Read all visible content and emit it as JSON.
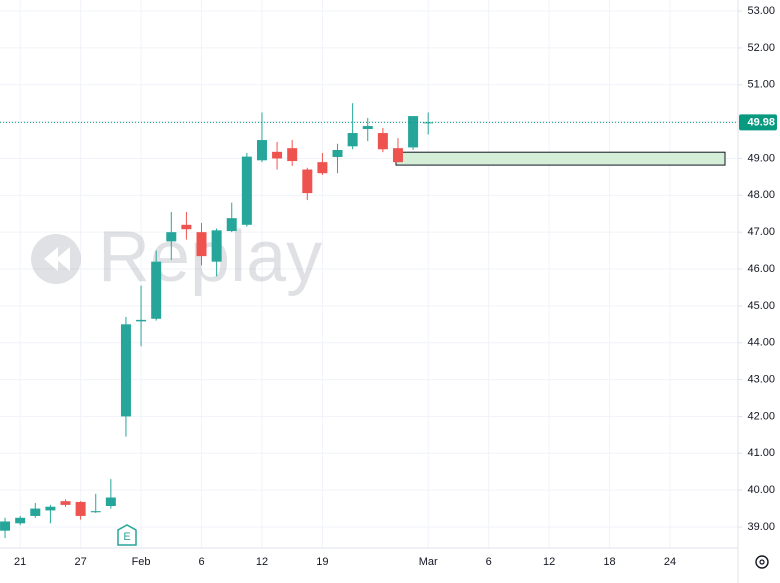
{
  "chart_data": {
    "type": "candlestick",
    "watermark": "Replay",
    "earnings_label": "E",
    "categories": [
      null,
      "21",
      null,
      null,
      null,
      "27",
      null,
      null,
      null,
      "Feb",
      null,
      null,
      null,
      "6",
      null,
      null,
      null,
      "12",
      null,
      null,
      null,
      "19",
      null,
      null,
      null,
      null,
      null,
      null,
      "Mar",
      null,
      null,
      null,
      "6",
      null,
      null,
      null,
      "12",
      null,
      null,
      null,
      "18",
      null,
      null,
      null,
      "24",
      null,
      null,
      null,
      null
    ],
    "open": [
      38.9,
      39.1,
      39.3,
      39.45,
      39.7,
      39.68,
      39.4,
      39.57,
      42.0,
      44.58,
      44.65,
      46.75,
      47.2,
      47.0,
      46.2,
      47.03,
      47.2,
      48.95,
      49.18,
      49.28,
      48.7,
      48.9,
      49.04,
      49.33,
      49.8,
      49.69,
      49.28,
      49.3,
      49.97,
      null,
      null,
      null,
      null,
      null,
      null,
      null,
      null,
      null,
      null,
      null,
      null,
      null,
      null,
      null,
      null,
      null,
      null,
      null,
      null
    ],
    "high": [
      39.25,
      39.3,
      39.65,
      39.6,
      39.75,
      39.7,
      39.9,
      40.3,
      44.7,
      45.55,
      46.5,
      47.55,
      47.55,
      47.25,
      47.1,
      47.8,
      49.15,
      50.25,
      49.45,
      49.5,
      48.75,
      49.15,
      49.4,
      50.5,
      50.1,
      49.83,
      49.55,
      50.15,
      50.25,
      null,
      null,
      null,
      null,
      null,
      null,
      null,
      null,
      null,
      null,
      null,
      null,
      null,
      null,
      null,
      null,
      null,
      null,
      null,
      null
    ],
    "low": [
      38.7,
      39.05,
      39.25,
      39.1,
      39.55,
      39.2,
      39.38,
      39.5,
      41.45,
      43.9,
      44.6,
      46.25,
      46.8,
      46.1,
      45.8,
      47.0,
      47.15,
      48.9,
      48.7,
      48.8,
      47.87,
      48.55,
      48.6,
      49.25,
      49.47,
      49.17,
      48.9,
      49.23,
      49.65,
      null,
      null,
      null,
      null,
      null,
      null,
      null,
      null,
      null,
      null,
      null,
      null,
      null,
      null,
      null,
      null,
      null,
      null,
      null,
      null
    ],
    "close": [
      39.15,
      39.25,
      39.5,
      39.55,
      39.6,
      39.3,
      39.43,
      39.8,
      44.5,
      44.62,
      46.2,
      47.0,
      47.08,
      46.35,
      47.05,
      47.38,
      49.05,
      49.5,
      49.0,
      48.93,
      48.06,
      48.6,
      49.23,
      49.69,
      49.88,
      49.25,
      48.9,
      50.15,
      49.98,
      null,
      null,
      null,
      null,
      null,
      null,
      null,
      null,
      null,
      null,
      null,
      null,
      null,
      null,
      null,
      null,
      null,
      null,
      null,
      null
    ],
    "up_color": "#26a69a",
    "down_color": "#ef5350",
    "last_price": 49.98,
    "last_price_color": "#089981",
    "zone": {
      "low": 48.82,
      "high": 49.17,
      "color": "#d4eed8"
    },
    "ylim": [
      38.43,
      53.3
    ],
    "yticks": [
      {
        "value": 39,
        "label": "39.00"
      },
      {
        "value": 40,
        "label": "40.00"
      },
      {
        "value": 41,
        "label": "41.00"
      },
      {
        "value": 42,
        "label": "42.00"
      },
      {
        "value": 43,
        "label": "43.00"
      },
      {
        "value": 44,
        "label": "44.00"
      },
      {
        "value": 45,
        "label": "45.00"
      },
      {
        "value": 46,
        "label": "46.00"
      },
      {
        "value": 47,
        "label": "47.00"
      },
      {
        "value": 48,
        "label": "48.00"
      },
      {
        "value": 49,
        "label": "49.00"
      },
      {
        "value": 50,
        "label": "50.00"
      },
      {
        "value": 51,
        "label": "51.00"
      },
      {
        "value": 52,
        "label": "52.00"
      },
      {
        "value": 53,
        "label": "53.00"
      }
    ],
    "grid": true
  }
}
